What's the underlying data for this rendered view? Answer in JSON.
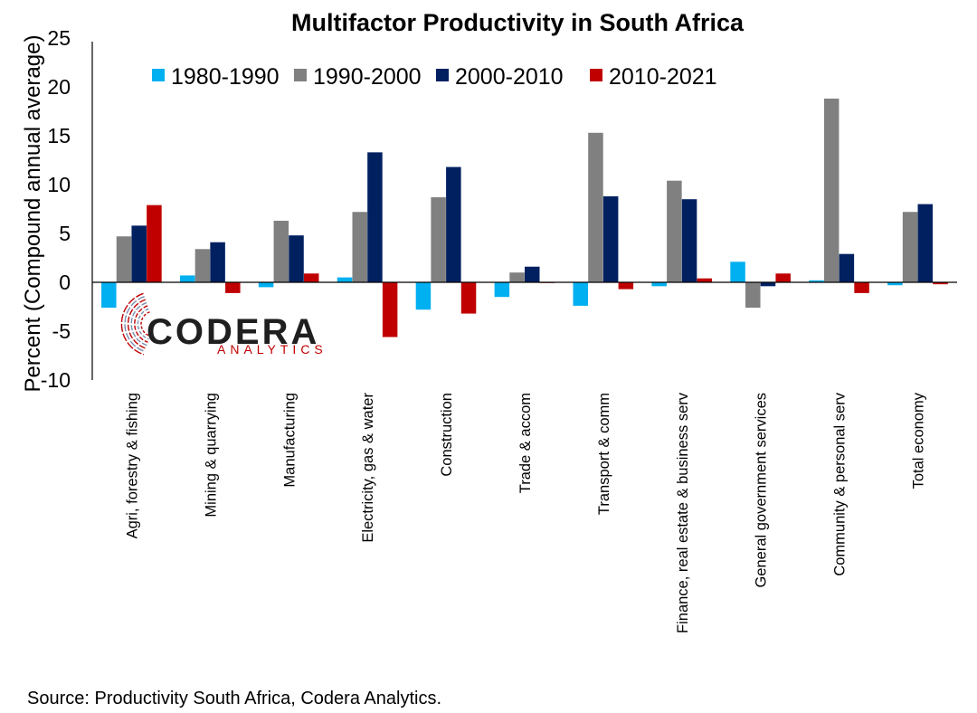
{
  "chart_data": {
    "type": "bar",
    "title": "Multifactor Productivity in South Africa",
    "ylabel": "Percent (Compound annual average)",
    "xlabel": "",
    "ylim": [
      -10,
      25
    ],
    "yticks": [
      "-10",
      "-5",
      "0",
      "5",
      "10",
      "15",
      "20",
      "25"
    ],
    "legend_position": "top",
    "grid": false,
    "categories": [
      "Agri, forestry & fishing",
      "Mining & quarrying",
      "Manufacturing",
      "Electricity, gas & water",
      "Construction",
      "Trade & accom",
      "Transport & comm",
      "Finance, real estate & business serv",
      "General government services",
      "Community & personal serv",
      "Total economy"
    ],
    "series": [
      {
        "name": "1980-1990",
        "color": "#00B0F0",
        "values": [
          -2.6,
          0.7,
          -0.5,
          0.5,
          -2.8,
          -1.5,
          -2.4,
          -0.4,
          2.1,
          0.2,
          -0.3
        ]
      },
      {
        "name": "1990-2000",
        "color": "#808080",
        "values": [
          4.7,
          3.4,
          6.3,
          7.2,
          8.7,
          1.0,
          15.3,
          10.4,
          -2.6,
          18.8,
          7.2
        ]
      },
      {
        "name": "2000-2010",
        "color": "#002060",
        "values": [
          5.8,
          4.1,
          4.8,
          13.3,
          11.8,
          1.6,
          8.8,
          8.5,
          -0.4,
          2.9,
          8.0
        ]
      },
      {
        "name": "2010-2021",
        "color": "#C00000",
        "values": [
          7.9,
          -1.1,
          0.9,
          -5.6,
          -3.2,
          0.0,
          -0.7,
          0.4,
          0.9,
          -1.1,
          -0.2
        ]
      }
    ]
  },
  "source": "Source: Productivity South Africa, Codera Analytics.",
  "logo": {
    "name": "CODERA",
    "sub": "ANALYTICS",
    "accent": "#C00000"
  }
}
